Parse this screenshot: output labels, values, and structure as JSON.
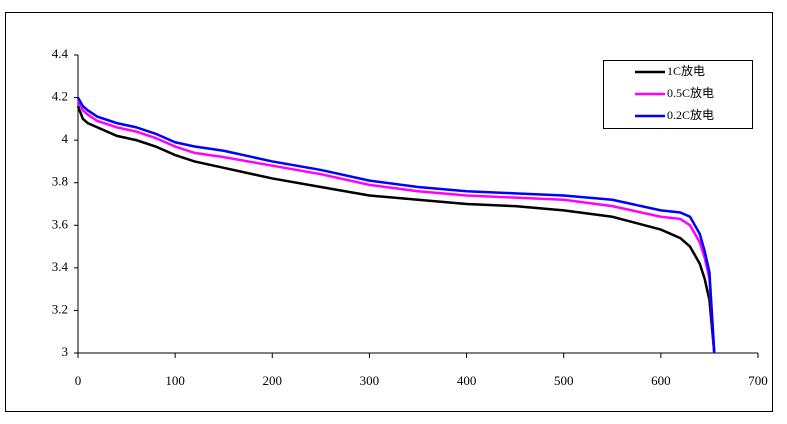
{
  "chart_data": {
    "type": "line",
    "x": [
      0,
      5,
      10,
      20,
      40,
      60,
      80,
      100,
      120,
      150,
      200,
      250,
      300,
      350,
      400,
      450,
      500,
      550,
      600,
      620,
      630,
      640,
      645,
      650,
      655
    ],
    "series": [
      {
        "name": "1C放电",
        "color": "#000000",
        "values": [
          4.16,
          4.1,
          4.08,
          4.06,
          4.02,
          4.0,
          3.97,
          3.93,
          3.9,
          3.87,
          3.82,
          3.78,
          3.74,
          3.72,
          3.7,
          3.69,
          3.67,
          3.64,
          3.58,
          3.54,
          3.5,
          3.42,
          3.35,
          3.25,
          3.0
        ]
      },
      {
        "name": "0.5C放电",
        "color": "#ff00ff",
        "values": [
          4.19,
          4.14,
          4.12,
          4.09,
          4.06,
          4.04,
          4.01,
          3.97,
          3.94,
          3.92,
          3.88,
          3.84,
          3.79,
          3.76,
          3.74,
          3.73,
          3.72,
          3.69,
          3.64,
          3.63,
          3.6,
          3.52,
          3.45,
          3.35,
          3.0
        ]
      },
      {
        "name": "0.2C放电",
        "color": "#0000ff",
        "values": [
          4.2,
          4.16,
          4.14,
          4.11,
          4.08,
          4.06,
          4.03,
          3.99,
          3.97,
          3.95,
          3.9,
          3.86,
          3.81,
          3.78,
          3.76,
          3.75,
          3.74,
          3.72,
          3.67,
          3.66,
          3.64,
          3.56,
          3.48,
          3.38,
          3.0
        ]
      }
    ],
    "xlim": [
      0,
      700
    ],
    "xticks": [
      0,
      100,
      200,
      300,
      400,
      500,
      600,
      700
    ],
    "ylim": [
      3,
      4.4
    ],
    "yticks": [
      3,
      3.2,
      3.4,
      3.6,
      3.8,
      4,
      4.2,
      4.4
    ],
    "grid": false,
    "legend": "upper right"
  }
}
